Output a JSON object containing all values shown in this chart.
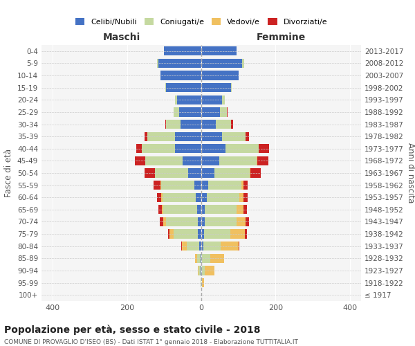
{
  "age_groups": [
    "100+",
    "95-99",
    "90-94",
    "85-89",
    "80-84",
    "75-79",
    "70-74",
    "65-69",
    "60-64",
    "55-59",
    "50-54",
    "45-49",
    "40-44",
    "35-39",
    "30-34",
    "25-29",
    "20-24",
    "15-19",
    "10-14",
    "5-9",
    "0-4"
  ],
  "birth_years": [
    "≤ 1917",
    "1918-1922",
    "1923-1927",
    "1928-1932",
    "1933-1937",
    "1938-1942",
    "1943-1947",
    "1948-1952",
    "1953-1957",
    "1958-1962",
    "1963-1967",
    "1968-1972",
    "1973-1977",
    "1978-1982",
    "1983-1987",
    "1988-1992",
    "1993-1997",
    "1998-2002",
    "2003-2007",
    "2008-2012",
    "2013-2017"
  ],
  "maschi": {
    "celibi": [
      0,
      0,
      2,
      2,
      5,
      10,
      10,
      12,
      15,
      18,
      35,
      50,
      70,
      70,
      55,
      60,
      65,
      95,
      110,
      115,
      100
    ],
    "coniugati": [
      0,
      1,
      5,
      10,
      35,
      65,
      85,
      90,
      90,
      90,
      90,
      100,
      90,
      75,
      40,
      15,
      5,
      2,
      0,
      5,
      0
    ],
    "vedovi": [
      0,
      0,
      2,
      5,
      12,
      10,
      8,
      5,
      3,
      2,
      0,
      0,
      0,
      0,
      0,
      0,
      0,
      0,
      0,
      0,
      0
    ],
    "divorziati": [
      0,
      0,
      0,
      0,
      2,
      5,
      8,
      8,
      12,
      18,
      28,
      28,
      15,
      8,
      2,
      0,
      0,
      0,
      0,
      0,
      0
    ]
  },
  "femmine": {
    "nubili": [
      0,
      0,
      2,
      2,
      5,
      8,
      10,
      10,
      15,
      18,
      35,
      48,
      65,
      55,
      40,
      50,
      55,
      80,
      100,
      110,
      95
    ],
    "coniugate": [
      0,
      2,
      8,
      22,
      48,
      70,
      85,
      85,
      88,
      90,
      95,
      100,
      90,
      65,
      40,
      18,
      8,
      2,
      0,
      5,
      0
    ],
    "vedove": [
      1,
      5,
      25,
      38,
      48,
      40,
      25,
      18,
      10,
      5,
      2,
      2,
      0,
      0,
      0,
      0,
      0,
      0,
      0,
      0,
      0
    ],
    "divorziate": [
      0,
      0,
      0,
      0,
      2,
      5,
      8,
      10,
      12,
      12,
      28,
      30,
      28,
      8,
      5,
      2,
      0,
      0,
      0,
      0,
      0
    ]
  },
  "colors": {
    "celibi_nubili": "#4472C4",
    "coniugati": "#c5d9a0",
    "vedovi": "#f0c060",
    "divorziati": "#cc2222"
  },
  "title": "Popolazione per età, sesso e stato civile - 2018",
  "subtitle": "COMUNE DI PROVAGLIO D'ISEO (BS) - Dati ISTAT 1° gennaio 2018 - Elaborazione TUTTITALIA.IT",
  "xlabel_maschi": "Maschi",
  "xlabel_femmine": "Femmine",
  "ylabel_left": "Fasce di età",
  "ylabel_right": "Anni di nascita",
  "xlim": 430,
  "legend_labels": [
    "Celibi/Nubili",
    "Coniugati/e",
    "Vedovi/e",
    "Divorziati/e"
  ],
  "bg_color": "#f5f5f5"
}
